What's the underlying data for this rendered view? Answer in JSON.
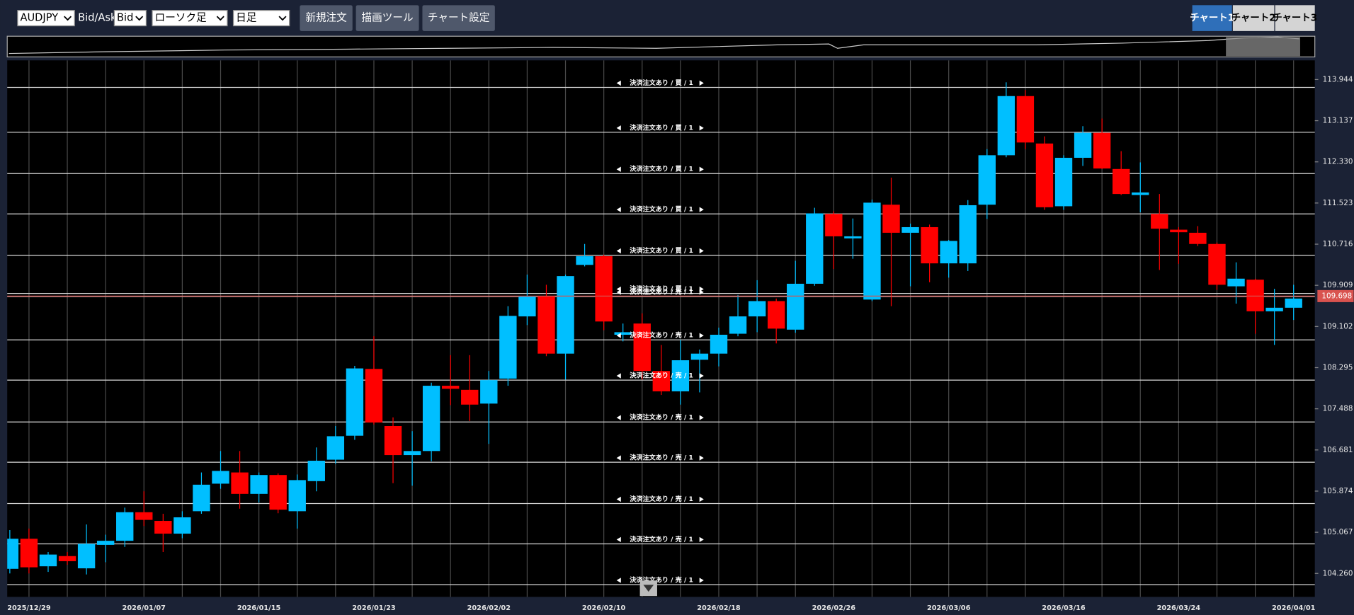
{
  "toolbar": {
    "symbol": "AUDJPY",
    "bid_ask_label": "Bid/Ask",
    "bid_ask": "Bid",
    "chart_type": "ローソク足",
    "period": "日足",
    "buttons": [
      "新規注文",
      "描画ツール",
      "チャート設定"
    ],
    "tabs": [
      "チャート1",
      "チャート2",
      "チャート3"
    ]
  },
  "chart_data": {
    "type": "candlestick",
    "categories": [
      null,
      "2025/12/29",
      null,
      null,
      null,
      null,
      null,
      "2026/01/07",
      null,
      null,
      null,
      null,
      null,
      "2026/01/15",
      null,
      null,
      null,
      null,
      null,
      "2026/01/23",
      null,
      null,
      null,
      null,
      null,
      "2026/02/02",
      null,
      null,
      null,
      null,
      null,
      "2026/02/10",
      null,
      null,
      null,
      null,
      null,
      "2026/02/18",
      null,
      null,
      null,
      null,
      null,
      "2026/02/26",
      null,
      null,
      null,
      null,
      null,
      "2026/03/06",
      null,
      null,
      null,
      null,
      null,
      "2026/03/16",
      null,
      null,
      null,
      null,
      null,
      "2026/03/24",
      null,
      null,
      null,
      null,
      null,
      "2026/04/01"
    ],
    "open": [
      104.35,
      104.94,
      104.4,
      104.6,
      104.36,
      104.82,
      104.9,
      105.46,
      105.29,
      105.04,
      105.48,
      106.02,
      106.24,
      105.82,
      106.19,
      105.48,
      106.07,
      106.49,
      106.96,
      108.27,
      107.15,
      106.58,
      106.66,
      107.94,
      107.86,
      107.59,
      108.08,
      109.3,
      109.69,
      108.57,
      110.31,
      110.48,
      108.94,
      109.16,
      108.23,
      107.83,
      108.45,
      108.57,
      108.96,
      109.3,
      109.6,
      109.04,
      109.94,
      111.31,
      110.83,
      109.63,
      111.49,
      110.94,
      111.05,
      110.34,
      110.34,
      111.49,
      112.46,
      113.62,
      112.69,
      111.46,
      112.41,
      112.9,
      112.19,
      111.68,
      111.31,
      111.0,
      110.94,
      110.72,
      109.89,
      110.02,
      109.4,
      109.47
    ],
    "high": [
      105.11,
      105.14,
      104.68,
      104.68,
      105.22,
      105.02,
      105.55,
      105.87,
      105.43,
      105.48,
      106.24,
      106.66,
      106.66,
      106.24,
      106.22,
      106.2,
      106.73,
      107.15,
      108.33,
      108.91,
      107.32,
      107.05,
      108.0,
      108.54,
      108.54,
      108.23,
      109.5,
      110.12,
      109.92,
      110.12,
      110.72,
      110.51,
      109.16,
      109.36,
      108.74,
      108.84,
      108.65,
      109.08,
      109.72,
      110.01,
      109.65,
      110.39,
      111.43,
      111.36,
      111.22,
      111.59,
      112.02,
      111.12,
      111.1,
      110.8,
      111.58,
      112.58,
      113.89,
      113.74,
      112.83,
      112.46,
      113.03,
      113.18,
      112.54,
      112.32,
      111.7,
      111.05,
      111.07,
      110.75,
      110.36,
      110.04,
      109.84,
      109.92
    ],
    "low": [
      104.26,
      104.26,
      104.29,
      104.43,
      104.24,
      104.48,
      104.78,
      105.19,
      104.68,
      104.95,
      105.43,
      105.92,
      105.53,
      105.65,
      105.44,
      105.14,
      105.87,
      106.41,
      106.88,
      107.18,
      106.03,
      105.98,
      106.46,
      107.56,
      107.25,
      106.8,
      107.94,
      109.13,
      108.52,
      108.06,
      110.28,
      109.03,
      108.81,
      108.06,
      107.76,
      107.57,
      107.81,
      108.32,
      108.91,
      108.99,
      108.77,
      108.98,
      109.9,
      110.23,
      110.43,
      109.6,
      109.5,
      109.89,
      109.97,
      110.06,
      110.19,
      111.21,
      112.42,
      112.58,
      111.39,
      111.39,
      112.25,
      112.19,
      111.68,
      111.34,
      110.21,
      110.33,
      110.68,
      109.82,
      109.55,
      108.96,
      108.74,
      109.23
    ],
    "close": [
      104.94,
      104.38,
      104.63,
      104.5,
      104.84,
      104.9,
      105.46,
      105.31,
      105.04,
      105.36,
      106.0,
      106.27,
      105.82,
      106.19,
      105.51,
      106.09,
      106.47,
      106.95,
      108.28,
      107.22,
      106.58,
      106.66,
      107.94,
      107.88,
      107.57,
      108.05,
      109.31,
      109.7,
      108.57,
      110.09,
      110.48,
      109.2,
      108.99,
      108.23,
      107.83,
      108.44,
      108.57,
      108.94,
      109.3,
      109.6,
      109.06,
      109.94,
      111.32,
      110.87,
      110.87,
      111.53,
      110.94,
      111.05,
      110.34,
      110.78,
      111.48,
      112.46,
      113.62,
      112.71,
      111.44,
      112.41,
      112.9,
      112.2,
      111.7,
      111.73,
      111.02,
      110.95,
      110.72,
      109.92,
      110.04,
      109.4,
      109.47,
      109.65
    ],
    "up_color": "#00bfff",
    "down_color": "#ff0000",
    "ylim": [
      103.8,
      114.32
    ],
    "yticks": [
      113.944,
      113.137,
      {
        "value": 112.33,
        "label": "112.330"
      },
      111.523,
      110.716,
      109.909,
      109.102,
      108.295,
      107.488,
      106.681,
      105.874,
      105.067,
      {
        "value": 104.26,
        "label": "104.260"
      }
    ],
    "current_price": 109.698,
    "current_price_color": "#d9534f",
    "order_lines": [
      {
        "value": 113.79,
        "label": "決済注文あり / 買 / 1"
      },
      {
        "value": 112.91,
        "label": "決済注文あり / 買 / 1"
      },
      {
        "value": 112.1,
        "label": "決済注文あり / 買 / 1"
      },
      {
        "value": 111.31,
        "label": "決済注文あり / 買 / 1"
      },
      {
        "value": 110.5,
        "label": "決済注文あり / 買 / 1"
      },
      {
        "value": 109.75,
        "label": "決済注文あり / 買 / 1"
      },
      {
        "value": 109.69,
        "label": "決済注文あり / 売 / 1"
      },
      {
        "value": 108.84,
        "label": "決済注文あり / 売 / 1"
      },
      {
        "value": 108.05,
        "label": "決済注文あり / 売 / 1"
      },
      {
        "value": 107.23,
        "label": "決済注文あり / 売 / 1"
      },
      {
        "value": 106.44,
        "label": "決済注文あり / 売 / 1"
      },
      {
        "value": 105.63,
        "label": "決済注文あり / 売 / 1"
      },
      {
        "value": 104.84,
        "label": "決済注文あり / 売 / 1"
      },
      {
        "value": 104.04,
        "label": "決済注文あり / 売 / 1"
      }
    ]
  }
}
